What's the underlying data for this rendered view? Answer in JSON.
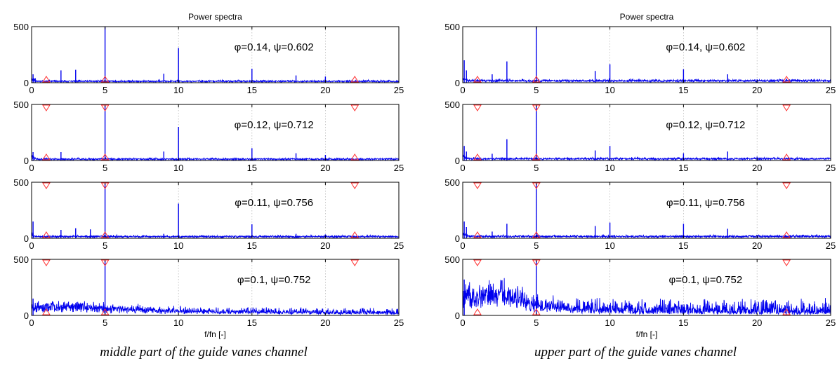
{
  "figure": {
    "captions": [
      "middle part of the guide vanes channel",
      "upper part of the guide vanes channel"
    ]
  },
  "colors": {
    "trace": "#0000ee",
    "marker": "#ff3333",
    "grid": "#bbbbbb",
    "axis": "#000000"
  },
  "chart_data": [
    {
      "type": "line",
      "title": "Power spectra",
      "xlabel": "f/fn [-]",
      "xlim": [
        0,
        25
      ],
      "xticks": [
        0,
        5,
        10,
        15,
        20,
        25
      ],
      "yticks": [
        0,
        500
      ],
      "grid": "vertical dotted at x ticks",
      "subplots": [
        {
          "annotation": "φ=0.14, ψ=0.602",
          "ylim": [
            0,
            500
          ],
          "noise_floor": 15,
          "noise_amp": 12,
          "peaks": [
            [
              0.1,
              75
            ],
            [
              0.25,
              40
            ],
            [
              2,
              110
            ],
            [
              3,
              115
            ],
            [
              5,
              500
            ],
            [
              9,
              80
            ],
            [
              10,
              310
            ],
            [
              15,
              125
            ],
            [
              18,
              65
            ],
            [
              20,
              55
            ]
          ],
          "markers": [
            {
              "x": 1,
              "dir": "up"
            },
            {
              "x": 5,
              "dir": "up"
            },
            {
              "x": 22,
              "dir": "up"
            }
          ]
        },
        {
          "annotation": "φ=0.12, ψ=0.712",
          "ylim": [
            0,
            500
          ],
          "noise_floor": 15,
          "noise_amp": 12,
          "peaks": [
            [
              0.1,
              75
            ],
            [
              2,
              75
            ],
            [
              5,
              500
            ],
            [
              9,
              80
            ],
            [
              10,
              300
            ],
            [
              15,
              110
            ],
            [
              18,
              65
            ],
            [
              20,
              50
            ]
          ],
          "markers": [
            {
              "x": 1,
              "dir": "down"
            },
            {
              "x": 5,
              "dir": "down"
            },
            {
              "x": 22,
              "dir": "down"
            },
            {
              "x": 1,
              "dir": "up"
            },
            {
              "x": 5,
              "dir": "up"
            },
            {
              "x": 22,
              "dir": "up"
            }
          ]
        },
        {
          "annotation": "φ=0.11, ψ=0.756",
          "ylim": [
            0,
            500
          ],
          "noise_floor": 18,
          "noise_amp": 14,
          "peaks": [
            [
              0.1,
              150
            ],
            [
              2,
              75
            ],
            [
              3,
              90
            ],
            [
              4,
              80
            ],
            [
              5,
              500
            ],
            [
              9,
              40
            ],
            [
              10,
              310
            ],
            [
              15,
              125
            ],
            [
              18,
              40
            ],
            [
              20,
              35
            ]
          ],
          "markers": [
            {
              "x": 1,
              "dir": "down"
            },
            {
              "x": 5,
              "dir": "down"
            },
            {
              "x": 22,
              "dir": "down"
            },
            {
              "x": 1,
              "dir": "up"
            },
            {
              "x": 5,
              "dir": "up"
            },
            {
              "x": 22,
              "dir": "up"
            }
          ]
        },
        {
          "annotation": "φ=0.1, ψ=0.752",
          "ylim": [
            0,
            500
          ],
          "broadband": [
            [
              0,
              90
            ],
            [
              3,
              110
            ],
            [
              5,
              75
            ],
            [
              8,
              55
            ],
            [
              12,
              35
            ],
            [
              25,
              20
            ]
          ],
          "noise_amp": 55,
          "peaks": [
            [
              0.1,
              150
            ],
            [
              5,
              500
            ]
          ],
          "markers": [
            {
              "x": 1,
              "dir": "down"
            },
            {
              "x": 5,
              "dir": "down"
            },
            {
              "x": 22,
              "dir": "down"
            },
            {
              "x": 1,
              "dir": "up"
            },
            {
              "x": 5,
              "dir": "up"
            }
          ]
        }
      ]
    },
    {
      "type": "line",
      "title": "Power spectra",
      "xlabel": "f/fn [-]",
      "xlim": [
        0,
        25
      ],
      "xticks": [
        0,
        5,
        10,
        15,
        20,
        25
      ],
      "yticks": [
        0,
        500
      ],
      "grid": "vertical dotted at x ticks",
      "subplots": [
        {
          "annotation": "φ=0.14, ψ=0.602",
          "ylim": [
            0,
            500
          ],
          "noise_floor": 20,
          "noise_amp": 18,
          "peaks": [
            [
              0.1,
              200
            ],
            [
              0.25,
              110
            ],
            [
              2,
              75
            ],
            [
              3,
              190
            ],
            [
              5,
              500
            ],
            [
              9,
              105
            ],
            [
              10,
              165
            ],
            [
              15,
              120
            ],
            [
              18,
              75
            ],
            [
              20,
              30
            ]
          ],
          "markers": [
            {
              "x": 1,
              "dir": "up"
            },
            {
              "x": 5,
              "dir": "up"
            },
            {
              "x": 22,
              "dir": "up"
            }
          ]
        },
        {
          "annotation": "φ=0.12, ψ=0.712",
          "ylim": [
            0,
            500
          ],
          "noise_floor": 18,
          "noise_amp": 15,
          "peaks": [
            [
              0.1,
              130
            ],
            [
              0.25,
              80
            ],
            [
              2,
              60
            ],
            [
              3,
              190
            ],
            [
              5,
              500
            ],
            [
              9,
              90
            ],
            [
              10,
              130
            ],
            [
              15,
              65
            ],
            [
              18,
              80
            ],
            [
              20,
              35
            ]
          ],
          "markers": [
            {
              "x": 1,
              "dir": "down"
            },
            {
              "x": 5,
              "dir": "down"
            },
            {
              "x": 22,
              "dir": "down"
            },
            {
              "x": 1,
              "dir": "up"
            },
            {
              "x": 5,
              "dir": "up"
            },
            {
              "x": 22,
              "dir": "up"
            }
          ]
        },
        {
          "annotation": "φ=0.11, ψ=0.756",
          "ylim": [
            0,
            500
          ],
          "noise_floor": 20,
          "noise_amp": 16,
          "peaks": [
            [
              0.1,
              150
            ],
            [
              0.25,
              100
            ],
            [
              2,
              60
            ],
            [
              3,
              130
            ],
            [
              5,
              500
            ],
            [
              9,
              110
            ],
            [
              10,
              140
            ],
            [
              15,
              130
            ],
            [
              18,
              85
            ],
            [
              20,
              30
            ]
          ],
          "markers": [
            {
              "x": 1,
              "dir": "down"
            },
            {
              "x": 5,
              "dir": "down"
            },
            {
              "x": 22,
              "dir": "down"
            },
            {
              "x": 1,
              "dir": "up"
            },
            {
              "x": 5,
              "dir": "up"
            },
            {
              "x": 22,
              "dir": "up"
            }
          ]
        },
        {
          "annotation": "φ=0.1, ψ=0.752",
          "ylim": [
            0,
            500
          ],
          "broadband": [
            [
              0,
              200
            ],
            [
              1.5,
              230
            ],
            [
              2.5,
              250
            ],
            [
              3.5,
              200
            ],
            [
              4.5,
              110
            ],
            [
              6,
              75
            ],
            [
              8,
              45
            ],
            [
              12,
              30
            ],
            [
              25,
              18
            ]
          ],
          "noise_amp": 140,
          "peaks": [
            [
              0.1,
              320
            ],
            [
              5,
              500
            ]
          ],
          "markers": [
            {
              "x": 1,
              "dir": "down"
            },
            {
              "x": 5,
              "dir": "down"
            },
            {
              "x": 22,
              "dir": "down"
            },
            {
              "x": 1,
              "dir": "up"
            },
            {
              "x": 5,
              "dir": "up"
            },
            {
              "x": 22,
              "dir": "up"
            }
          ]
        }
      ]
    }
  ]
}
